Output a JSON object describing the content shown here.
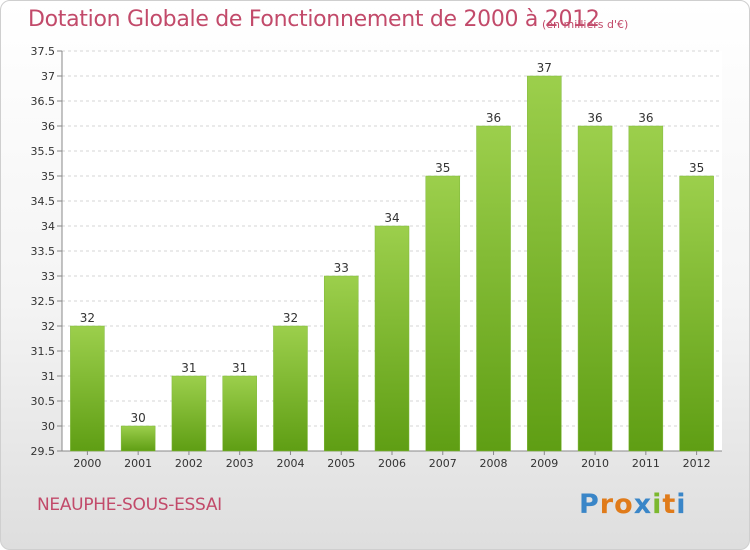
{
  "chart_data": {
    "type": "bar",
    "title": "Dotation Globale de Fonctionnement de 2000 à 2012",
    "subtitle": "(en milliers d'€)",
    "xlabel": "",
    "ylabel": "",
    "categories": [
      "2000",
      "2001",
      "2002",
      "2003",
      "2004",
      "2005",
      "2006",
      "2007",
      "2008",
      "2009",
      "2010",
      "2011",
      "2012"
    ],
    "values": [
      32,
      30,
      31,
      31,
      32,
      33,
      34,
      35,
      36,
      37,
      36,
      36,
      35
    ],
    "data_labels": [
      "32",
      "30",
      "31",
      "31",
      "32",
      "33",
      "34",
      "35",
      "36",
      "37",
      "36",
      "36",
      "35"
    ],
    "ylim": [
      29.5,
      37.5
    ],
    "yticks": [
      29.5,
      30,
      30.5,
      31,
      31.5,
      32,
      32.5,
      33,
      33.5,
      34,
      34.5,
      35,
      35.5,
      36,
      36.5,
      37,
      37.5
    ],
    "ytick_labels": [
      "29.5",
      "30",
      "30.5",
      "31",
      "31.5",
      "32",
      "32.5",
      "33",
      "33.5",
      "34",
      "34.5",
      "35",
      "35.5",
      "36",
      "36.5",
      "37",
      "37.5"
    ],
    "grid": true,
    "bar_color_top": "#9ccf4c",
    "bar_color_bottom": "#5f9e14"
  },
  "footer": {
    "commune": "NEAUPHE-SOUS-ESSAI",
    "logo_letters": [
      "P",
      "r",
      "o",
      "x",
      "i",
      "t",
      "i"
    ],
    "logo_colors": [
      "#3a86c8",
      "#e07b1a",
      "#e07b1a",
      "#3a86c8",
      "#7cb82f",
      "#e07b1a",
      "#3a86c8"
    ]
  },
  "colors": {
    "title": "#c24a6a",
    "grid": "#d6d6d6",
    "axis": "#888888",
    "text": "#333333"
  }
}
